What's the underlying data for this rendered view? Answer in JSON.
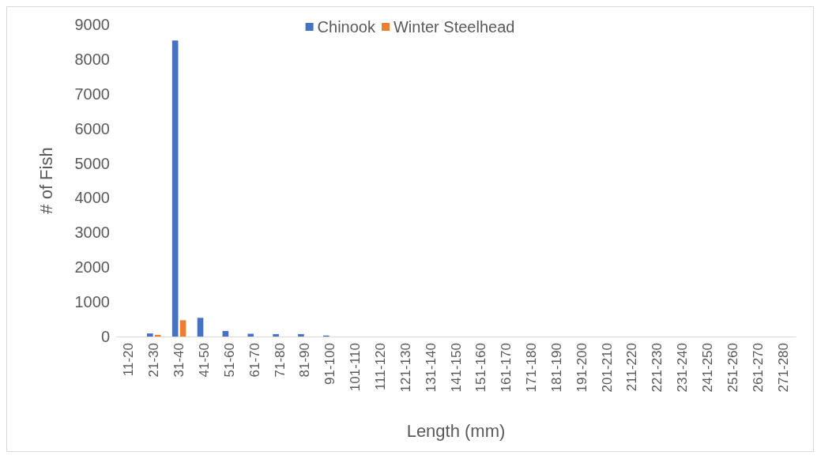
{
  "chart_data": {
    "type": "bar",
    "xlabel": "Length (mm)",
    "ylabel": "# of Fish",
    "categories": [
      "11-20",
      "21-30",
      "31-40",
      "41-50",
      "51-60",
      "61-70",
      "71-80",
      "81-90",
      "91-100",
      "101-110",
      "111-120",
      "121-130",
      "131-140",
      "141-150",
      "151-160",
      "161-170",
      "171-180",
      "181-190",
      "191-200",
      "201-210",
      "211-220",
      "221-230",
      "231-240",
      "241-250",
      "251-260",
      "261-270",
      "271-280"
    ],
    "series": [
      {
        "name": "Chinook",
        "color": "#4472c4",
        "values": [
          0,
          90,
          8540,
          540,
          160,
          80,
          70,
          70,
          30,
          0,
          0,
          0,
          0,
          0,
          0,
          0,
          0,
          0,
          0,
          0,
          0,
          0,
          0,
          0,
          0,
          0,
          0
        ]
      },
      {
        "name": "Winter Steelhead",
        "color": "#ed7d31",
        "values": [
          0,
          50,
          470,
          0,
          0,
          0,
          0,
          0,
          0,
          0,
          0,
          0,
          0,
          0,
          0,
          0,
          0,
          0,
          0,
          0,
          0,
          0,
          0,
          0,
          0,
          0,
          0
        ]
      }
    ],
    "ylim": [
      0,
      9000
    ],
    "yticks": [
      0,
      1000,
      2000,
      3000,
      4000,
      5000,
      6000,
      7000,
      8000,
      9000
    ],
    "grid": false,
    "legend": "top"
  }
}
